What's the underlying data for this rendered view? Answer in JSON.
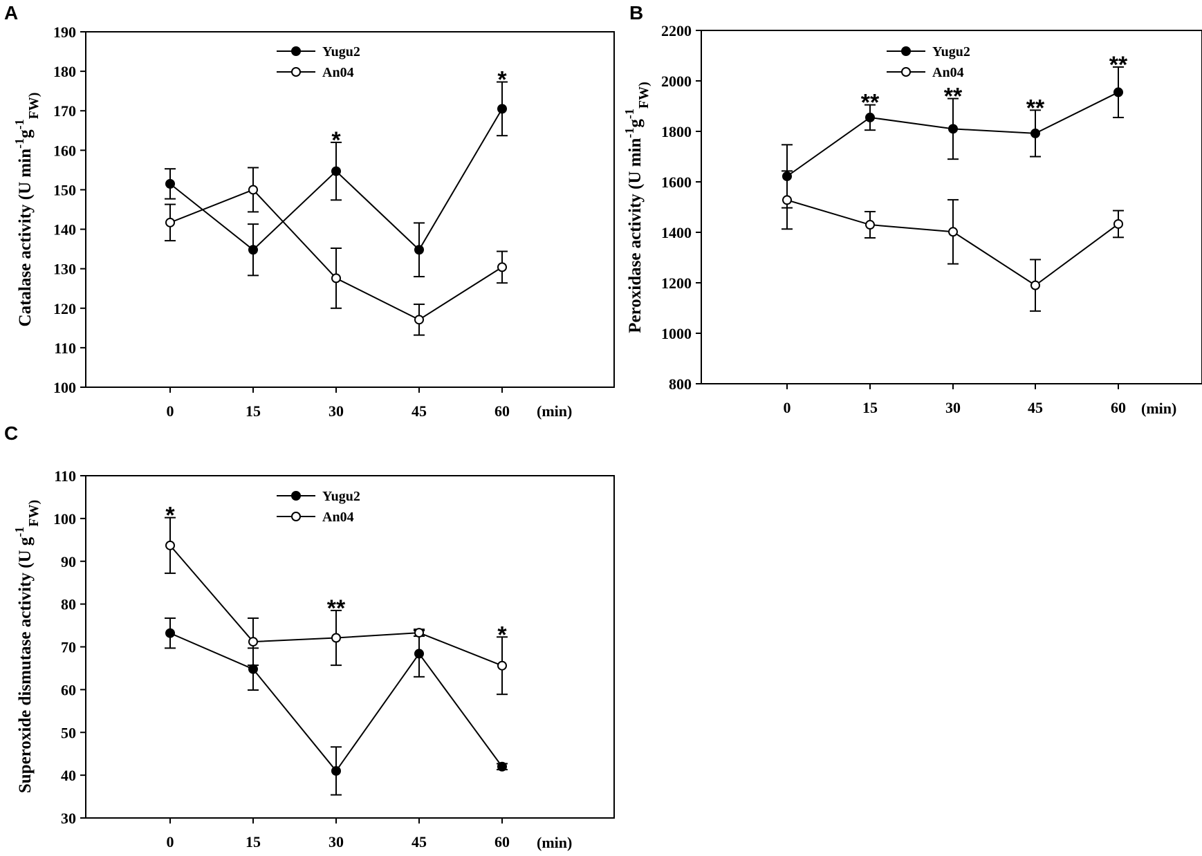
{
  "figure": {
    "x_unit_label": "(min)"
  },
  "chart_data": [
    {
      "panel": "A",
      "type": "line",
      "xlabel": "(min)",
      "ylabel_parts": [
        "Catalase  activity (U min",
        "-1",
        "g",
        "-1",
        "FW)"
      ],
      "ylim": [
        100,
        190
      ],
      "yticks": [
        100,
        110,
        120,
        130,
        140,
        150,
        160,
        170,
        180,
        190
      ],
      "categories": [
        "0",
        "15",
        "30",
        "45",
        "60"
      ],
      "x": [
        0,
        15,
        30,
        45,
        60
      ],
      "legend": {
        "position": "top-center"
      },
      "series": [
        {
          "name": "Yugu2",
          "marker": "filled",
          "values": [
            151.5,
            134.8,
            154.7,
            134.8,
            170.5
          ],
          "errors": [
            3.8,
            6.5,
            7.3,
            6.8,
            6.8
          ]
        },
        {
          "name": "An04",
          "marker": "open",
          "values": [
            141.7,
            150.0,
            127.6,
            117.1,
            130.4
          ],
          "errors": [
            4.6,
            5.6,
            7.6,
            3.9,
            4.0
          ]
        }
      ],
      "annotations": [
        {
          "x": 30,
          "text": "*"
        },
        {
          "x": 60,
          "text": "*"
        }
      ]
    },
    {
      "panel": "B",
      "type": "line",
      "xlabel": "(min)",
      "ylabel_parts": [
        "Peroxidase activity (U min",
        "-1",
        "g",
        "-1",
        "FW)"
      ],
      "ylim": [
        800,
        2200
      ],
      "yticks": [
        800,
        1000,
        1200,
        1400,
        1600,
        1800,
        2000,
        2200
      ],
      "categories": [
        "0",
        "15",
        "30",
        "45",
        "60"
      ],
      "x": [
        0,
        15,
        30,
        45,
        60
      ],
      "legend": {
        "position": "top-center"
      },
      "series": [
        {
          "name": "Yugu2",
          "marker": "filled",
          "values": [
            1622,
            1855,
            1810,
            1792,
            1955
          ],
          "errors": [
            125,
            50,
            120,
            92,
            100
          ]
        },
        {
          "name": "An04",
          "marker": "open",
          "values": [
            1528,
            1430,
            1402,
            1190,
            1433
          ],
          "errors": [
            115,
            52,
            127,
            102,
            53
          ]
        }
      ],
      "annotations": [
        {
          "x": 15,
          "text": "**"
        },
        {
          "x": 30,
          "text": "**"
        },
        {
          "x": 45,
          "text": "**"
        },
        {
          "x": 60,
          "text": "**"
        }
      ]
    },
    {
      "panel": "C",
      "type": "line",
      "xlabel": "(min)",
      "ylabel_parts": [
        "Superoxide dismutase activity (U g",
        "-1",
        "FW)"
      ],
      "ylim": [
        30,
        110
      ],
      "yticks": [
        30,
        40,
        50,
        60,
        70,
        80,
        90,
        100,
        110
      ],
      "categories": [
        "0",
        "15",
        "30",
        "45",
        "60"
      ],
      "x": [
        0,
        15,
        30,
        45,
        60
      ],
      "legend": {
        "position": "top-center"
      },
      "series": [
        {
          "name": "Yugu2",
          "marker": "filled",
          "values": [
            73.2,
            64.8,
            41.0,
            68.4,
            42.0
          ],
          "errors": [
            3.5,
            4.9,
            5.6,
            5.4,
            0.7
          ]
        },
        {
          "name": "An04",
          "marker": "open",
          "values": [
            93.7,
            71.2,
            72.1,
            73.3,
            65.6
          ],
          "errors": [
            6.5,
            5.5,
            6.4,
            0.8,
            6.7
          ]
        }
      ],
      "annotations": [
        {
          "x": 0,
          "text": "*"
        },
        {
          "x": 30,
          "text": "**"
        },
        {
          "x": 60,
          "text": "*"
        }
      ]
    }
  ]
}
